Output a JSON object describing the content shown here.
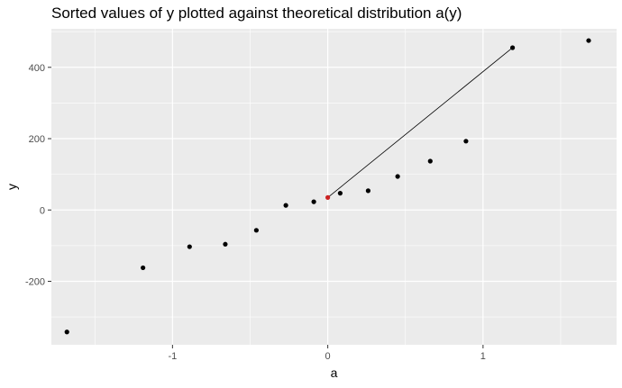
{
  "chart_data": {
    "type": "scatter",
    "title": "Sorted values of y plotted against theoretical distribution a(y)",
    "xlabel": "a",
    "ylabel": "y",
    "xlim": [
      -1.78,
      1.86
    ],
    "ylim": [
      -378,
      508
    ],
    "x_ticks": [
      -1,
      0,
      1
    ],
    "x_tick_labels": [
      "-1",
      "0",
      "1"
    ],
    "y_ticks": [
      -200,
      0,
      200,
      400
    ],
    "y_tick_labels": [
      "-200",
      "0",
      "200",
      "400"
    ],
    "grid": true,
    "background": "#ebebeb",
    "gridline_color": "#ffffff",
    "point_color": "#000000",
    "highlight_color": "#cc2222",
    "points": [
      {
        "x": -1.68,
        "y": -342
      },
      {
        "x": -1.19,
        "y": -162
      },
      {
        "x": -0.89,
        "y": -103
      },
      {
        "x": -0.66,
        "y": -96
      },
      {
        "x": -0.46,
        "y": -57
      },
      {
        "x": -0.27,
        "y": 13
      },
      {
        "x": -0.09,
        "y": 23
      },
      {
        "x": 0.08,
        "y": 47
      },
      {
        "x": 0.26,
        "y": 54
      },
      {
        "x": 0.45,
        "y": 94
      },
      {
        "x": 0.66,
        "y": 137
      },
      {
        "x": 0.89,
        "y": 193
      },
      {
        "x": 1.19,
        "y": 455
      },
      {
        "x": 1.68,
        "y": 475
      }
    ],
    "highlight_point": {
      "x": 0.0,
      "y": 35
    },
    "segment": {
      "x1": 0.0,
      "y1": 35,
      "x2": 1.19,
      "y2": 455
    }
  }
}
